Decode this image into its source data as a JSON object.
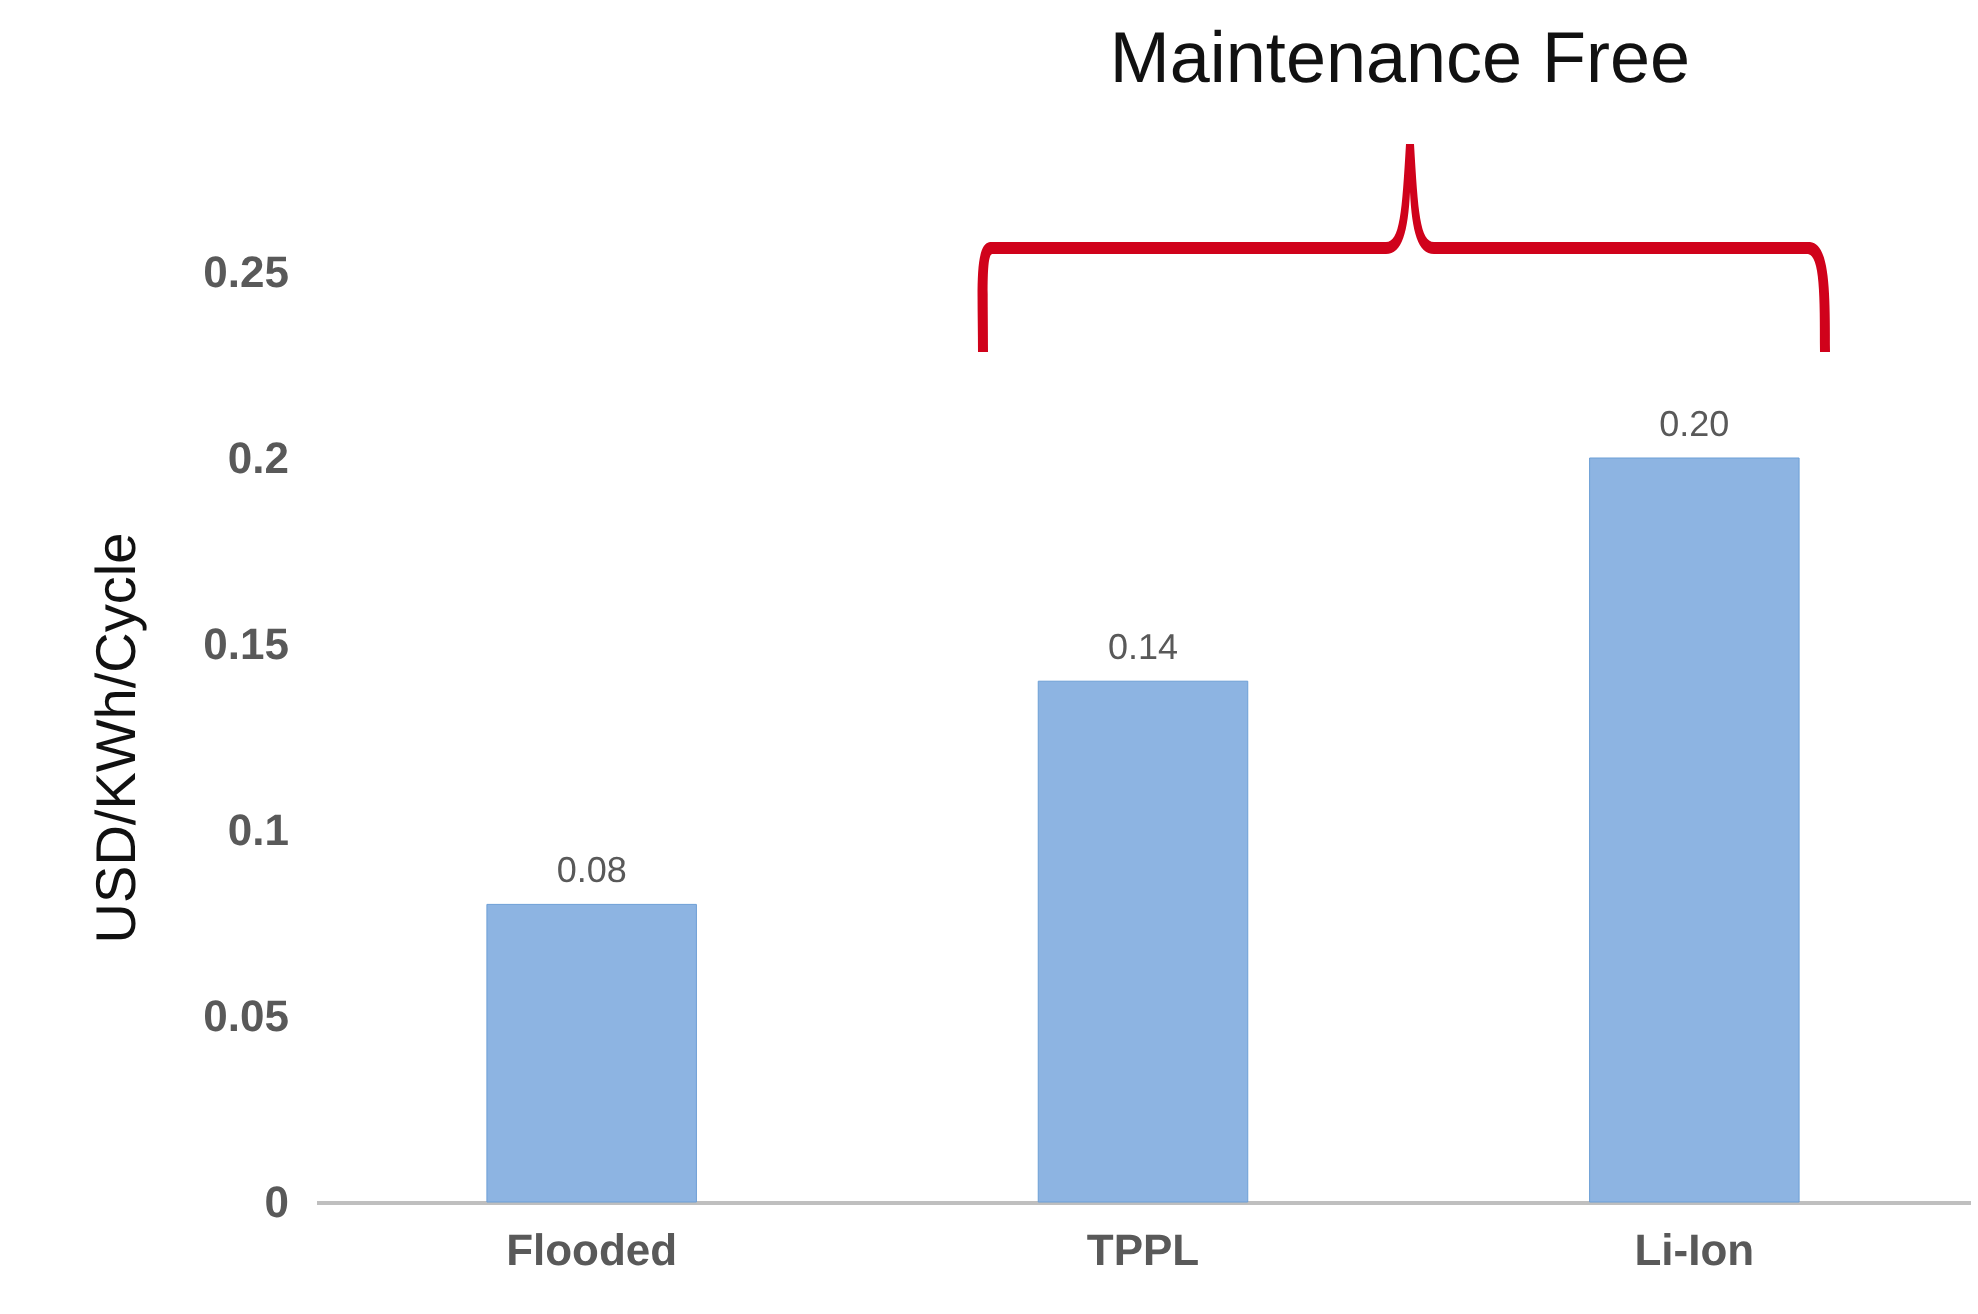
{
  "chart_data": {
    "type": "bar",
    "ylabel": "USD/KWh/Cycle",
    "categories": [
      "Flooded",
      "TPPL",
      "Li-Ion"
    ],
    "values": [
      0.08,
      0.14,
      0.2
    ],
    "value_labels": [
      "0.08",
      "0.14",
      "0.20"
    ],
    "color": "#8db4e2",
    "ylim": [
      0,
      0.25
    ],
    "yticks": [
      0,
      0.05,
      0.1,
      0.15,
      0.2,
      0.25
    ],
    "grid": false,
    "annotations": [
      "Maintenance Free"
    ]
  }
}
